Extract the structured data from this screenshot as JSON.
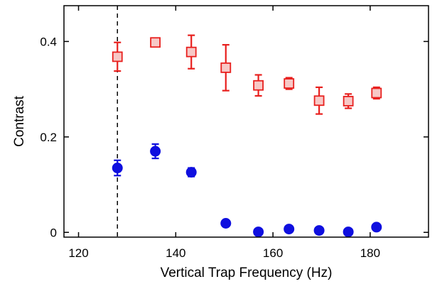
{
  "chart_data": {
    "type": "scatter",
    "xlabel": "Vertical Trap Frequency (Hz)",
    "ylabel": "Contrast",
    "xlim": [
      117,
      192
    ],
    "ylim": [
      -0.01,
      0.475
    ],
    "x_ticks": [
      {
        "value": 120,
        "label": "120"
      },
      {
        "value": 140,
        "label": "140"
      },
      {
        "value": 160,
        "label": "160"
      },
      {
        "value": 180,
        "label": "180"
      }
    ],
    "y_ticks": [
      {
        "value": 0,
        "label": "0"
      },
      {
        "value": 0.2,
        "label": "0.2"
      },
      {
        "value": 0.4,
        "label": "0.4"
      }
    ],
    "grid": false,
    "reference_line": {
      "x": 128,
      "style": "dashed",
      "color": "#000000"
    },
    "series": [
      {
        "marker": "square",
        "color": "#e8201e",
        "fill": "#f7c8c6",
        "points": [
          {
            "x": 128,
            "y": 0.368,
            "err": 0.03
          },
          {
            "x": 135.8,
            "y": 0.398,
            "err": 0.0
          },
          {
            "x": 143.2,
            "y": 0.378,
            "err": 0.035
          },
          {
            "x": 150.3,
            "y": 0.345,
            "err": 0.048
          },
          {
            "x": 157.0,
            "y": 0.308,
            "err": 0.022
          },
          {
            "x": 163.3,
            "y": 0.312,
            "err": 0.012
          },
          {
            "x": 169.5,
            "y": 0.276,
            "err": 0.028
          },
          {
            "x": 175.5,
            "y": 0.275,
            "err": 0.015
          },
          {
            "x": 181.3,
            "y": 0.292,
            "err": 0.012
          }
        ]
      },
      {
        "marker": "circle",
        "color": "#0f0fdf",
        "fill": "#0f0fdf",
        "points": [
          {
            "x": 128,
            "y": 0.135,
            "err": 0.016
          },
          {
            "x": 135.8,
            "y": 0.17,
            "err": 0.015
          },
          {
            "x": 143.2,
            "y": 0.126,
            "err": 0.009
          },
          {
            "x": 150.3,
            "y": 0.019,
            "err": 0.004
          },
          {
            "x": 157.0,
            "y": 0.001,
            "err": 0.002
          },
          {
            "x": 163.3,
            "y": 0.007,
            "err": 0.002
          },
          {
            "x": 169.5,
            "y": 0.004,
            "err": 0.002
          },
          {
            "x": 175.5,
            "y": 0.001,
            "err": 0.002
          },
          {
            "x": 181.3,
            "y": 0.011,
            "err": 0.006
          }
        ]
      }
    ]
  }
}
